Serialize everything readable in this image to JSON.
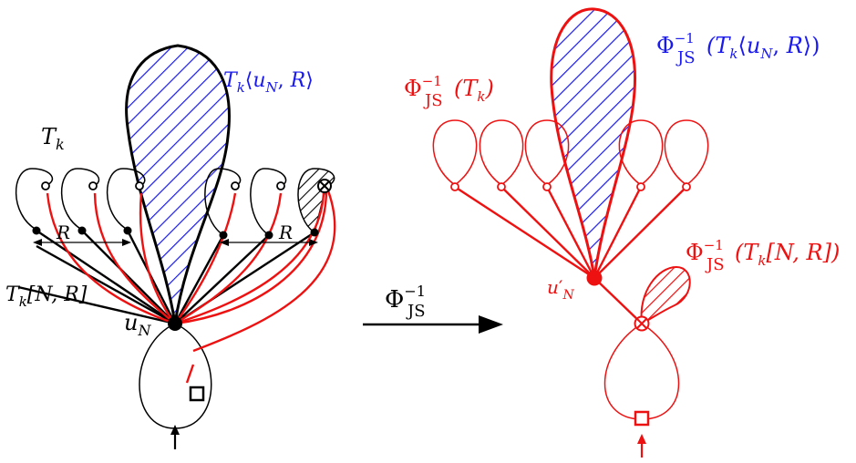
{
  "colors": {
    "black": "#000000",
    "red": "#ee1111",
    "blue": "#1a1aee"
  },
  "left": {
    "tk_label": "T",
    "tk_sub": "k",
    "region_label": {
      "pre": "T",
      "sub": "k",
      "open": "⟨",
      "u": "u",
      "usub": "N",
      "comma": ", ",
      "r": "R",
      "close": "⟩"
    },
    "r_left": "R",
    "r_right": "R",
    "tkn_label": {
      "pre": "T",
      "sub": "k",
      "bracket": "[N, R]"
    },
    "root_label": {
      "u": "u",
      "sub": "N"
    }
  },
  "arrow": {
    "phi": "Φ",
    "sup": "−1",
    "sub": "JS"
  },
  "right": {
    "tk_label": {
      "phi": "Φ",
      "sup": "−1",
      "sub": "JS",
      "arg": "(T",
      "argsub": "k",
      "close": ")"
    },
    "region_label": {
      "phi": "Φ",
      "sup": "−1",
      "sub": "JS",
      "arg": "(T",
      "argsub": "k",
      "open": "⟨",
      "u": "u",
      "usub": "N",
      "comma": ", ",
      "r": "R",
      "close": "⟩)"
    },
    "tkn_label": {
      "phi": "Φ",
      "sup": "−1",
      "sub": "JS",
      "arg": "(T",
      "argsub": "k",
      "bracket": "[N, R])"
    },
    "root_label": {
      "u": "u",
      "prime": "′",
      "sub": "N"
    }
  }
}
